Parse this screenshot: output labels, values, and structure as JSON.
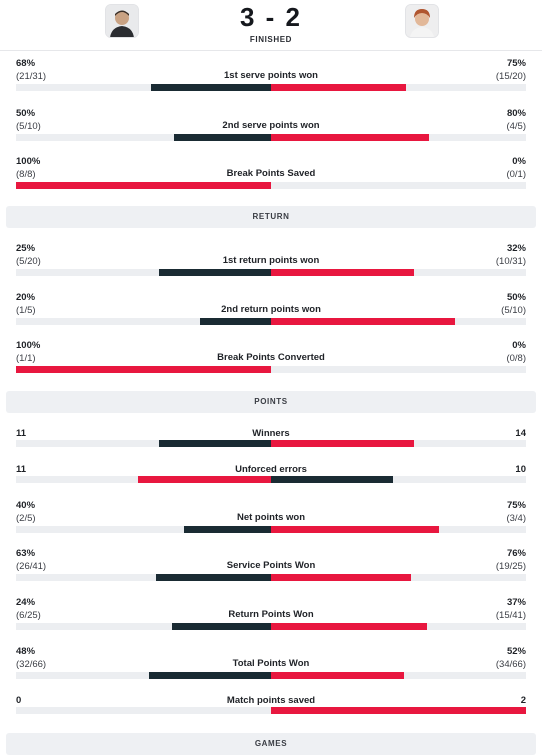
{
  "match": {
    "score": "3 - 2",
    "status": "FINISHED",
    "left_player_avatar": "player-photo-dark-hair",
    "right_player_avatar": "player-photo-curly-hair"
  },
  "colors": {
    "left": "#1a2b33",
    "right": "#e8173f",
    "track": "#eceef1"
  },
  "sections": {
    "return": "RETURN",
    "points": "POINTS",
    "games": "GAMES"
  },
  "stats": [
    {
      "label": "1st serve points won",
      "left_value": "68%",
      "left_sub": "(21/31)",
      "right_value": "75%",
      "right_sub": "(15/20)",
      "left_share": 0.47,
      "right_share": 0.53,
      "left_win": false
    },
    {
      "label": "2nd serve points won",
      "left_value": "50%",
      "left_sub": "(5/10)",
      "right_value": "80%",
      "right_sub": "(4/5)",
      "left_share": 0.38,
      "right_share": 0.62,
      "left_win": false
    },
    {
      "label": "Break Points Saved",
      "left_value": "100%",
      "left_sub": "(8/8)",
      "right_value": "0%",
      "right_sub": "(0/1)",
      "left_share": 1.0,
      "right_share": 0.0,
      "left_win": true
    },
    {
      "label": "1st return points won",
      "left_value": "25%",
      "left_sub": "(5/20)",
      "right_value": "32%",
      "right_sub": "(10/31)",
      "left_share": 0.44,
      "right_share": 0.56,
      "left_win": false
    },
    {
      "label": "2nd return points won",
      "left_value": "20%",
      "left_sub": "(1/5)",
      "right_value": "50%",
      "right_sub": "(5/10)",
      "left_share": 0.28,
      "right_share": 0.72,
      "left_win": false
    },
    {
      "label": "Break Points Converted",
      "left_value": "100%",
      "left_sub": "(1/1)",
      "right_value": "0%",
      "right_sub": "(0/8)",
      "left_share": 1.0,
      "right_share": 0.0,
      "left_win": true
    },
    {
      "label": "Winners",
      "left_value": "11",
      "left_sub": "",
      "right_value": "14",
      "right_sub": "",
      "left_share": 0.44,
      "right_share": 0.56,
      "left_win": false
    },
    {
      "label": "Unforced errors",
      "left_value": "11",
      "left_sub": "",
      "right_value": "10",
      "right_sub": "",
      "left_share": 0.52,
      "right_share": 0.48,
      "left_win": true
    },
    {
      "label": "Net points won",
      "left_value": "40%",
      "left_sub": "(2/5)",
      "right_value": "75%",
      "right_sub": "(3/4)",
      "left_share": 0.34,
      "right_share": 0.66,
      "left_win": false
    },
    {
      "label": "Service Points Won",
      "left_value": "63%",
      "left_sub": "(26/41)",
      "right_value": "76%",
      "right_sub": "(19/25)",
      "left_share": 0.45,
      "right_share": 0.55,
      "left_win": false
    },
    {
      "label": "Return Points Won",
      "left_value": "24%",
      "left_sub": "(6/25)",
      "right_value": "37%",
      "right_sub": "(15/41)",
      "left_share": 0.39,
      "right_share": 0.61,
      "left_win": false
    },
    {
      "label": "Total Points Won",
      "left_value": "48%",
      "left_sub": "(32/66)",
      "right_value": "52%",
      "right_sub": "(34/66)",
      "left_share": 0.48,
      "right_share": 0.52,
      "left_win": false
    },
    {
      "label": "Match points saved",
      "left_value": "0",
      "left_sub": "",
      "right_value": "2",
      "right_sub": "",
      "left_share": 0.0,
      "right_share": 1.0,
      "left_win": false
    }
  ]
}
